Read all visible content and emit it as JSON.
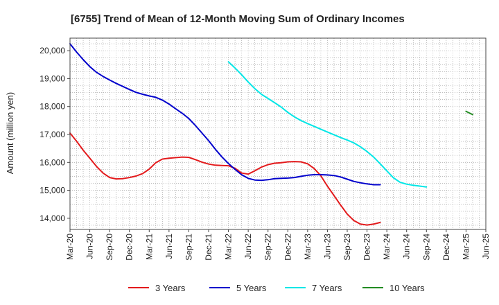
{
  "chart_data": {
    "type": "line",
    "title": "[6755]  Trend of Mean of 12-Month Moving Sum of Ordinary Incomes",
    "xlabel": "",
    "ylabel": "Amount (million yen)",
    "ylim": [
      13600,
      20450
    ],
    "grid": true,
    "legend_position": "bottom",
    "x_tick_labels": [
      "Mar-20",
      "Jun-20",
      "Sep-20",
      "Dec-20",
      "Mar-21",
      "Jun-21",
      "Sep-21",
      "Dec-21",
      "Mar-22",
      "Jun-22",
      "Sep-22",
      "Dec-22",
      "Mar-23",
      "Jun-23",
      "Sep-23",
      "Dec-23",
      "Mar-24",
      "Jun-24",
      "Sep-24",
      "Dec-24",
      "Mar-25",
      "Jun-25"
    ],
    "y_ticks": [
      14000,
      15000,
      16000,
      17000,
      18000,
      19000,
      20000
    ],
    "y_tick_labels": [
      "14,000",
      "15,000",
      "16,000",
      "17,000",
      "18,000",
      "19,000",
      "20,000"
    ],
    "series": [
      {
        "name": "3 Years",
        "color": "#e31a1c",
        "start_index": 0,
        "values": [
          17050,
          16760,
          16440,
          16150,
          15860,
          15620,
          15460,
          15410,
          15420,
          15460,
          15510,
          15600,
          15760,
          15990,
          16120,
          16150,
          16170,
          16190,
          16180,
          16100,
          16010,
          15940,
          15900,
          15890,
          15880,
          15790,
          15620,
          15580,
          15700,
          15830,
          15920,
          15970,
          15990,
          16020,
          16030,
          16020,
          15950,
          15780,
          15520,
          15150,
          14810,
          14470,
          14150,
          13920,
          13790,
          13760,
          13790,
          13850
        ]
      },
      {
        "name": "5 Years",
        "color": "#0000cc",
        "start_index": 0,
        "values": [
          20250,
          19950,
          19680,
          19430,
          19230,
          19080,
          18950,
          18830,
          18720,
          18610,
          18510,
          18440,
          18380,
          18330,
          18230,
          18090,
          17920,
          17760,
          17570,
          17320,
          17050,
          16780,
          16480,
          16200,
          15960,
          15750,
          15560,
          15430,
          15370,
          15360,
          15380,
          15420,
          15430,
          15440,
          15460,
          15500,
          15540,
          15560,
          15560,
          15550,
          15530,
          15480,
          15400,
          15320,
          15270,
          15230,
          15200,
          15200
        ]
      },
      {
        "name": "7 Years",
        "color": "#00e6e6",
        "start_index": 24,
        "values": [
          19600,
          19380,
          19140,
          18880,
          18640,
          18440,
          18290,
          18140,
          17980,
          17790,
          17630,
          17500,
          17390,
          17290,
          17190,
          17090,
          16990,
          16890,
          16800,
          16700,
          16560,
          16390,
          16190,
          15950,
          15700,
          15450,
          15290,
          15220,
          15180,
          15150,
          15120
        ]
      },
      {
        "name": "10 Years",
        "color": "#228b22",
        "start_index": 60,
        "values": [
          17830,
          17710
        ]
      }
    ]
  }
}
